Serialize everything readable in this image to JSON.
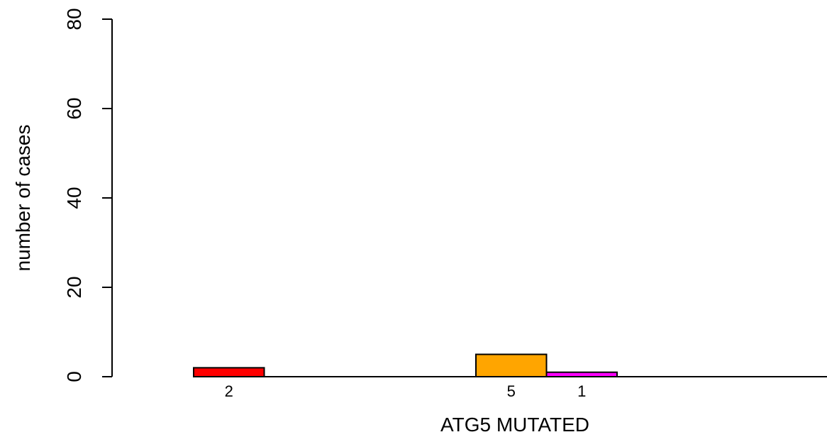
{
  "chart_data": {
    "type": "bar",
    "xlabel": "ATG5 MUTATED",
    "ylabel": "number of cases",
    "ylim": [
      0,
      80
    ],
    "yticks": [
      "0",
      "20",
      "40",
      "60",
      "80"
    ],
    "bars": [
      {
        "slot": 0,
        "value": 2,
        "label": "2",
        "color": "#ff0000"
      },
      {
        "slot": 1,
        "value": 0,
        "label": "",
        "color": "#ffa500"
      },
      {
        "slot": 2,
        "value": 0,
        "label": "",
        "color": "#ff00ff"
      },
      {
        "slot": 3,
        "value": 0,
        "label": "",
        "color": "#ff0000"
      },
      {
        "slot": 4,
        "value": 5,
        "label": "5",
        "color": "#ffa500"
      },
      {
        "slot": 5,
        "value": 1,
        "label": "1",
        "color": "#ff00ff"
      },
      {
        "slot": 6,
        "value": 0,
        "label": "",
        "color": "#ff0000"
      },
      {
        "slot": 7,
        "value": 0,
        "label": "",
        "color": "#ffa500"
      },
      {
        "slot": 8,
        "value": 0,
        "label": "",
        "color": "#ff00ff"
      }
    ]
  }
}
